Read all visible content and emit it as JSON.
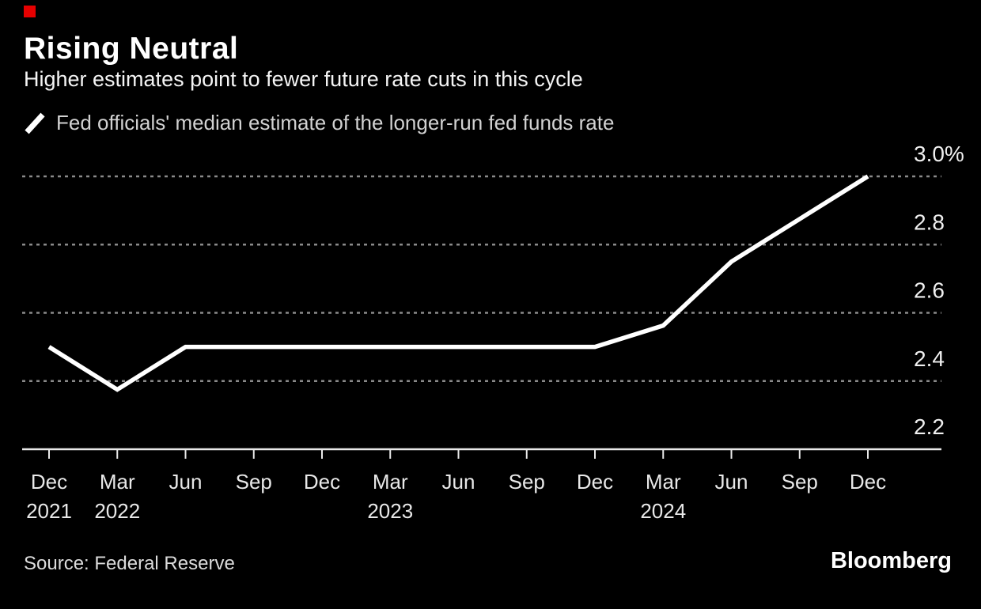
{
  "colors": {
    "accent": "#e60000",
    "background": "#000000",
    "line": "#ffffff",
    "grid": "#8a8a8a",
    "axis": "#e9e9e9",
    "axis_label": "#f0f0f0"
  },
  "header": {
    "title": "Rising Neutral",
    "subtitle": "Higher estimates point to fewer future rate cuts in this cycle"
  },
  "legend": {
    "series_label": "Fed officials' median estimate of the longer-run fed funds rate"
  },
  "footer": {
    "source": "Source: Federal Reserve",
    "brand": "Bloomberg"
  },
  "chart_data": {
    "type": "line",
    "title": "Rising Neutral",
    "subtitle": "Higher estimates point to fewer future rate cuts in this cycle",
    "series_label": "Fed officials' median estimate of the longer-run fed funds rate",
    "unit": "%",
    "x_ticks": [
      {
        "month": "Dec",
        "year": "2021"
      },
      {
        "month": "Mar",
        "year": "2022"
      },
      {
        "month": "Jun"
      },
      {
        "month": "Sep"
      },
      {
        "month": "Dec"
      },
      {
        "month": "Mar",
        "year": "2023"
      },
      {
        "month": "Jun"
      },
      {
        "month": "Sep"
      },
      {
        "month": "Dec"
      },
      {
        "month": "Mar",
        "year": "2024"
      },
      {
        "month": "Jun"
      },
      {
        "month": "Sep"
      },
      {
        "month": "Dec"
      }
    ],
    "values": [
      2.5,
      2.375,
      2.5,
      2.5,
      2.5,
      2.5,
      2.5,
      2.5,
      2.5,
      2.5625,
      2.75,
      2.875,
      3.0
    ],
    "y_ticks": [
      {
        "value": 3.0,
        "label": "3.0%"
      },
      {
        "value": 2.8,
        "label": "2.8"
      },
      {
        "value": 2.6,
        "label": "2.6"
      },
      {
        "value": 2.4,
        "label": "2.4"
      },
      {
        "value": 2.2,
        "label": "2.2"
      }
    ],
    "ylim": [
      2.2,
      3.0
    ],
    "grid": "horizontal-dotted",
    "legend_position": "top-left",
    "source": "Federal Reserve"
  }
}
